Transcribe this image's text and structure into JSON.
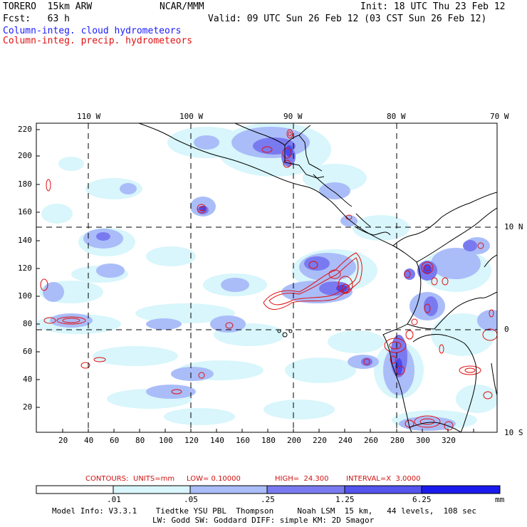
{
  "header": {
    "model": "TORERO  15km ARW",
    "center": "NCAR/MMM",
    "init": "Init: 18 UTC Thu 23 Feb 12",
    "fcst": "Fcst:   63 h",
    "valid": "Valid: 09 UTC Sun 26 Feb 12 (03 CST Sun 26 Feb 12)",
    "field1": "Column-integ. cloud hydrometeors",
    "field2": "Column-integ. precip. hydrometeors"
  },
  "map": {
    "lon_labels": [
      "110 W",
      "100 W",
      "90 W",
      "80 W",
      "70 W"
    ],
    "lat_labels": [
      "10 N",
      "0",
      "10 S"
    ],
    "y_ticks": [
      "220",
      "200",
      "180",
      "160",
      "140",
      "120",
      "100",
      "80",
      "60",
      "40",
      "20"
    ],
    "x_ticks": [
      "20",
      "40",
      "60",
      "80",
      "100",
      "120",
      "140",
      "160",
      "180",
      "200",
      "220",
      "240",
      "260",
      "280",
      "300",
      "320"
    ]
  },
  "contours": {
    "label": "CONTOURS:",
    "units": "UNITS=mm",
    "low": "LOW= 0.10000",
    "high": "HIGH=  24.300",
    "interval": "INTERVAL=X  3.0000"
  },
  "colorbar": {
    "ticks": [
      ".01",
      ".05",
      ".25",
      "1.25",
      "6.25"
    ],
    "unit": "mm",
    "colors": [
      "#ffffff",
      "#d8f6fb",
      "#aabdf9",
      "#7a7af0",
      "#5454ee",
      "#1a1aee"
    ]
  },
  "footer": {
    "line1": "Model Info: V3.3.1    Tiedtke YSU PBL  Thompson     Noah LSM  15 km,   44 levels,  108 sec",
    "line2": "LW: Godd SW: Goddard DIFF: simple KM: 2D Smagor"
  }
}
